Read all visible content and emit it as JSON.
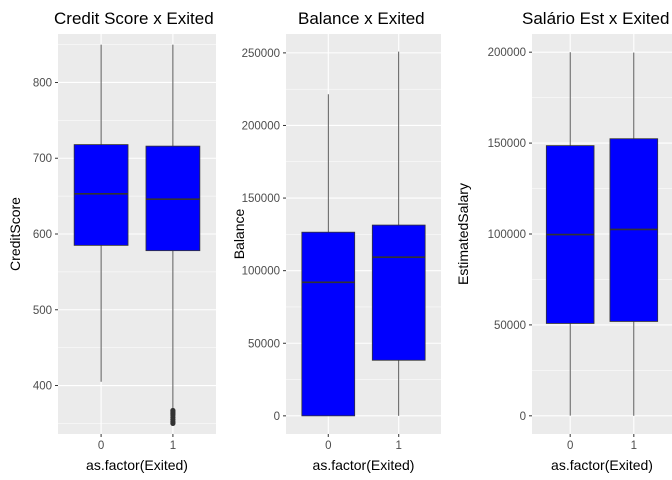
{
  "style": {
    "panel_bg": "#EBEBEB",
    "grid_major": "#FFFFFF",
    "box_fill": "#0000FF",
    "box_line": "#333333",
    "outlier": "#333333",
    "tick_text": "#4D4D4D"
  },
  "chart_data": [
    {
      "type": "boxplot",
      "title": "Credit Score x Exited",
      "xlabel": "as.factor(Exited)",
      "ylabel": "CreditScore",
      "categories": [
        "0",
        "1"
      ],
      "ylim": [
        336,
        864
      ],
      "yticks": [
        400,
        500,
        600,
        700,
        800
      ],
      "ytick_labels": [
        "400",
        "500",
        "600",
        "700",
        "800"
      ],
      "boxes": [
        {
          "category": "0",
          "lower_whisker": 405,
          "q1": 585,
          "median": 653,
          "q3": 718,
          "upper_whisker": 850,
          "outliers": []
        },
        {
          "category": "1",
          "lower_whisker": 368,
          "q1": 578,
          "median": 646,
          "q3": 716,
          "upper_whisker": 850,
          "outliers": [
            350,
            352,
            355,
            358,
            361,
            363,
            365,
            367
          ]
        }
      ]
    },
    {
      "type": "boxplot",
      "title": "Balance x Exited",
      "xlabel": "as.factor(Exited)",
      "ylabel": "Balance",
      "categories": [
        "0",
        "1"
      ],
      "ylim": [
        -12500,
        263000
      ],
      "yticks": [
        0,
        50000,
        100000,
        150000,
        200000,
        250000
      ],
      "ytick_labels": [
        "0",
        "50000",
        "100000",
        "150000",
        "200000",
        "250000"
      ],
      "boxes": [
        {
          "category": "0",
          "lower_whisker": 0,
          "q1": 0,
          "median": 92000,
          "q3": 126500,
          "upper_whisker": 221500,
          "outliers": []
        },
        {
          "category": "1",
          "lower_whisker": 0,
          "q1": 38300,
          "median": 109300,
          "q3": 131400,
          "upper_whisker": 250900,
          "outliers": []
        }
      ]
    },
    {
      "type": "boxplot",
      "title": "Salário Est x Exited",
      "xlabel": "as.factor(Exited)",
      "ylabel": "EstimatedSalary",
      "categories": [
        "0",
        "1"
      ],
      "ylim": [
        -10000,
        210000
      ],
      "yticks": [
        0,
        50000,
        100000,
        150000,
        200000
      ],
      "ytick_labels": [
        "0",
        "50000",
        "100000",
        "150000",
        "200000"
      ],
      "boxes": [
        {
          "category": "0",
          "lower_whisker": 90,
          "q1": 50800,
          "median": 99700,
          "q3": 148600,
          "upper_whisker": 199990,
          "outliers": []
        },
        {
          "category": "1",
          "lower_whisker": 12,
          "q1": 51900,
          "median": 102500,
          "q3": 152400,
          "upper_whisker": 199800,
          "outliers": []
        }
      ]
    }
  ]
}
